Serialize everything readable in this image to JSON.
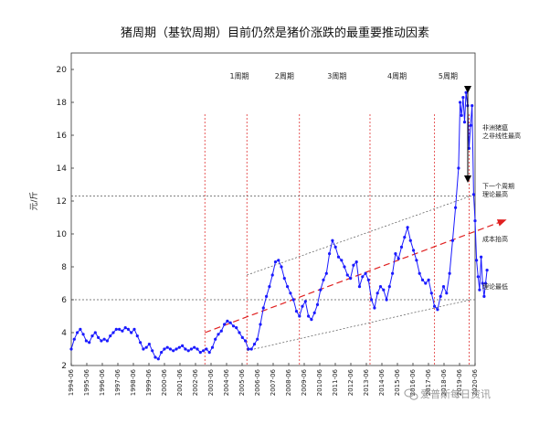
{
  "chart_data": {
    "type": "line",
    "title": "猪周期（基钦周期）目前仍然是猪价涨跌的最重要推动因素",
    "ylabel": "元/斤",
    "ylim": [
      2,
      21
    ],
    "yticks": [
      2,
      4,
      6,
      8,
      10,
      12,
      14,
      16,
      18,
      20
    ],
    "xlim": [
      1994.1,
      2021.0
    ],
    "x_ticks": [
      "1994-06",
      "1995-06",
      "1996-06",
      "1997-06",
      "1998-06",
      "1999-06",
      "2000-06",
      "2001-06",
      "2002-06",
      "2003-06",
      "2004-06",
      "2005-06",
      "2006-06",
      "2007-06",
      "2008-06",
      "2009-06",
      "2010-06",
      "2011-06",
      "2012-06",
      "2013-06",
      "2014-06",
      "2015-06",
      "2016-06",
      "2017-06",
      "2018-06",
      "2019-06",
      "2020-06"
    ],
    "period_labels": [
      "1周期",
      "2周期",
      "3周期",
      "4周期",
      "5周期"
    ],
    "period_label_years": [
      2005.3,
      2008.3,
      2011.8,
      2015.8,
      2019.2
    ],
    "period_dividers": [
      2003.0,
      2005.8,
      2009.3,
      2014.0,
      2018.3,
      2020.6
    ],
    "reference_lines": [
      {
        "y": 12.3,
        "label": "下一个周期\n理论最高"
      },
      {
        "y": 6.0,
        "label": "理论最低"
      }
    ],
    "annotations": [
      {
        "text": "非洲猪瘟\n之非线性最高",
        "x": 2020.5,
        "y": 15.5
      },
      {
        "text": "成本抬高",
        "x": 2020.8,
        "y": 9.1
      }
    ],
    "trend_channel": {
      "upper": [
        [
          2005.8,
          7.5
        ],
        [
          2020.7,
          12.3
        ]
      ],
      "lower": [
        [
          2005.8,
          2.9
        ],
        [
          2020.7,
          6.0
        ]
      ],
      "center_arrow": [
        [
          2003.0,
          4.0
        ],
        [
          2020.8,
          10.5
        ]
      ]
    },
    "series": [
      {
        "points": [
          [
            1994.1,
            3.0
          ],
          [
            1994.3,
            3.6
          ],
          [
            1994.5,
            4.0
          ],
          [
            1994.7,
            4.2
          ],
          [
            1994.9,
            3.9
          ],
          [
            1995.1,
            3.5
          ],
          [
            1995.3,
            3.4
          ],
          [
            1995.5,
            3.8
          ],
          [
            1995.7,
            4.0
          ],
          [
            1995.9,
            3.7
          ],
          [
            1996.1,
            3.5
          ],
          [
            1996.3,
            3.6
          ],
          [
            1996.5,
            3.5
          ],
          [
            1996.7,
            3.8
          ],
          [
            1996.9,
            4.0
          ],
          [
            1997.1,
            4.2
          ],
          [
            1997.3,
            4.2
          ],
          [
            1997.5,
            4.1
          ],
          [
            1997.7,
            4.3
          ],
          [
            1997.9,
            4.2
          ],
          [
            1998.1,
            4.0
          ],
          [
            1998.3,
            4.2
          ],
          [
            1998.5,
            3.8
          ],
          [
            1998.7,
            3.4
          ],
          [
            1998.9,
            3.0
          ],
          [
            1999.1,
            3.1
          ],
          [
            1999.3,
            3.3
          ],
          [
            1999.5,
            2.9
          ],
          [
            1999.7,
            2.5
          ],
          [
            1999.9,
            2.4
          ],
          [
            2000.1,
            2.8
          ],
          [
            2000.3,
            3.0
          ],
          [
            2000.5,
            3.1
          ],
          [
            2000.7,
            3.0
          ],
          [
            2000.9,
            2.9
          ],
          [
            2001.1,
            3.0
          ],
          [
            2001.3,
            3.1
          ],
          [
            2001.5,
            3.2
          ],
          [
            2001.7,
            3.0
          ],
          [
            2001.9,
            2.9
          ],
          [
            2002.1,
            3.0
          ],
          [
            2002.3,
            3.1
          ],
          [
            2002.5,
            3.0
          ],
          [
            2002.7,
            2.8
          ],
          [
            2002.9,
            2.9
          ],
          [
            2003.1,
            3.0
          ],
          [
            2003.3,
            2.8
          ],
          [
            2003.5,
            3.1
          ],
          [
            2003.7,
            3.6
          ],
          [
            2003.9,
            3.9
          ],
          [
            2004.1,
            4.1
          ],
          [
            2004.3,
            4.5
          ],
          [
            2004.5,
            4.7
          ],
          [
            2004.7,
            4.6
          ],
          [
            2004.9,
            4.4
          ],
          [
            2005.1,
            4.3
          ],
          [
            2005.3,
            4.0
          ],
          [
            2005.5,
            3.7
          ],
          [
            2005.7,
            3.5
          ],
          [
            2005.9,
            3.0
          ],
          [
            2006.1,
            3.0
          ],
          [
            2006.3,
            3.3
          ],
          [
            2006.5,
            3.6
          ],
          [
            2006.7,
            4.5
          ],
          [
            2006.9,
            5.5
          ],
          [
            2007.1,
            6.2
          ],
          [
            2007.3,
            6.8
          ],
          [
            2007.5,
            7.5
          ],
          [
            2007.7,
            8.3
          ],
          [
            2007.9,
            8.4
          ],
          [
            2008.1,
            8.0
          ],
          [
            2008.3,
            7.3
          ],
          [
            2008.5,
            6.8
          ],
          [
            2008.7,
            6.4
          ],
          [
            2008.9,
            6.0
          ],
          [
            2009.1,
            5.3
          ],
          [
            2009.3,
            5.0
          ],
          [
            2009.5,
            5.6
          ],
          [
            2009.7,
            5.9
          ],
          [
            2009.9,
            5.0
          ],
          [
            2010.1,
            4.8
          ],
          [
            2010.3,
            5.2
          ],
          [
            2010.5,
            5.7
          ],
          [
            2010.7,
            6.6
          ],
          [
            2010.9,
            7.2
          ],
          [
            2011.1,
            7.6
          ],
          [
            2011.3,
            8.8
          ],
          [
            2011.5,
            9.6
          ],
          [
            2011.7,
            9.2
          ],
          [
            2011.9,
            8.6
          ],
          [
            2012.1,
            8.4
          ],
          [
            2012.3,
            8.0
          ],
          [
            2012.5,
            7.5
          ],
          [
            2012.7,
            7.3
          ],
          [
            2012.9,
            8.1
          ],
          [
            2013.1,
            8.3
          ],
          [
            2013.3,
            6.8
          ],
          [
            2013.5,
            7.4
          ],
          [
            2013.7,
            7.6
          ],
          [
            2013.9,
            7.2
          ],
          [
            2014.1,
            6.0
          ],
          [
            2014.3,
            5.5
          ],
          [
            2014.5,
            6.4
          ],
          [
            2014.7,
            6.8
          ],
          [
            2014.9,
            6.6
          ],
          [
            2015.1,
            6.0
          ],
          [
            2015.3,
            6.8
          ],
          [
            2015.5,
            7.6
          ],
          [
            2015.7,
            8.8
          ],
          [
            2015.9,
            8.5
          ],
          [
            2016.1,
            9.2
          ],
          [
            2016.3,
            9.8
          ],
          [
            2016.5,
            10.4
          ],
          [
            2016.7,
            9.6
          ],
          [
            2016.9,
            9.0
          ],
          [
            2017.1,
            8.4
          ],
          [
            2017.3,
            7.6
          ],
          [
            2017.5,
            7.2
          ],
          [
            2017.7,
            7.0
          ],
          [
            2017.9,
            7.2
          ],
          [
            2018.1,
            6.4
          ],
          [
            2018.3,
            5.6
          ],
          [
            2018.5,
            5.4
          ],
          [
            2018.7,
            6.2
          ],
          [
            2018.9,
            6.8
          ],
          [
            2019.1,
            6.4
          ],
          [
            2019.3,
            7.6
          ],
          [
            2019.5,
            9.6
          ],
          [
            2019.7,
            11.6
          ],
          [
            2019.9,
            14.0
          ],
          [
            2020.0,
            18.0
          ],
          [
            2020.1,
            17.2
          ],
          [
            2020.2,
            18.3
          ],
          [
            2020.3,
            16.8
          ],
          [
            2020.4,
            18.6
          ],
          [
            2020.5,
            17.8
          ],
          [
            2020.6,
            15.2
          ],
          [
            2020.7,
            16.6
          ],
          [
            2020.8,
            17.8
          ],
          [
            2020.9,
            12.4
          ],
          [
            2021.0,
            10.8
          ],
          [
            2021.1,
            8.4
          ],
          [
            2021.2,
            7.4
          ],
          [
            2021.3,
            6.6
          ],
          [
            2021.4,
            8.6
          ],
          [
            2021.5,
            7.0
          ],
          [
            2021.6,
            6.2
          ],
          [
            2021.7,
            7.0
          ],
          [
            2021.8,
            7.8
          ]
        ]
      }
    ],
    "colors": {
      "series": "#1a1aff",
      "divider": "#e03030",
      "trend_arrow": "#e02020",
      "reference": "#555555",
      "channel": "#555555"
    }
  },
  "watermark": "爱普斯每日资讯",
  "watermark_icon": "wechat-icon"
}
